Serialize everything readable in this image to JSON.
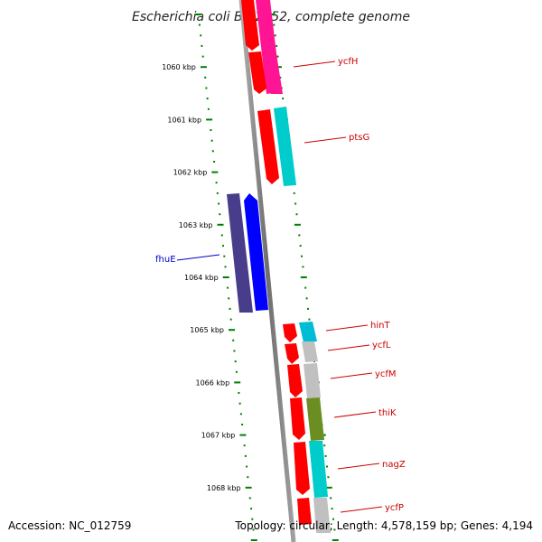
{
  "title": "Escherichia coli BW2952, complete genome",
  "footer": {
    "accession": "Accession: NC_012759",
    "topology": "Topology: circular; Length: 4,578,159 bp; Genes: 4,194"
  },
  "ticks": [
    "1060 kbp",
    "1061 kbp",
    "1062 kbp",
    "1063 kbp",
    "1064 kbp",
    "1065 kbp",
    "1066 kbp",
    "1067 kbp",
    "1068 kbp"
  ],
  "genes": [
    {
      "name": "ycfH",
      "color": "#cc0000"
    },
    {
      "name": "ptsG",
      "color": "#cc0000"
    },
    {
      "name": "fhuE",
      "color": "#0000cc"
    },
    {
      "name": "hinT",
      "color": "#cc0000"
    },
    {
      "name": "ycfL",
      "color": "#cc0000"
    },
    {
      "name": "ycfM",
      "color": "#cc0000"
    },
    {
      "name": "thiK",
      "color": "#cc0000"
    },
    {
      "name": "nagZ",
      "color": "#cc0000"
    },
    {
      "name": "ycfP",
      "color": "#cc0000"
    }
  ],
  "colors": {
    "backbone": "#808080",
    "tick_marks": "#008000",
    "arrow_red": "#ff0000",
    "arrow_blue": "#0000ff",
    "arrow_navy": "#483d8b",
    "magenta": "#ff1493",
    "cyan": "#00cccc",
    "grey": "#c0c0c0",
    "olive": "#6b8e23"
  }
}
